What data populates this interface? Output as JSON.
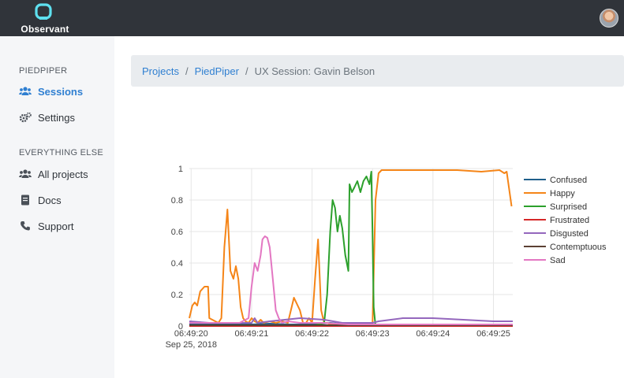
{
  "app": {
    "name": "Observant"
  },
  "sidebar": {
    "section1": "PIEDPIPER",
    "section2": "EVERYTHING ELSE",
    "items": [
      {
        "label": "Sessions",
        "icon": "users-icon",
        "active": true
      },
      {
        "label": "Settings",
        "icon": "gears-icon"
      },
      {
        "label": "All projects",
        "icon": "users-icon"
      },
      {
        "label": "Docs",
        "icon": "document-icon"
      },
      {
        "label": "Support",
        "icon": "phone-icon"
      }
    ]
  },
  "breadcrumb": {
    "projects": "Projects",
    "project": "PiedPiper",
    "current": "UX Session: Gavin Belson"
  },
  "colors": {
    "accent": "#2f7fd1",
    "topbar": "#30343a"
  },
  "chart_data": {
    "type": "line",
    "x_tick_labels": [
      "06:49:20",
      "06:49:21",
      "06:49:22",
      "06:49:23",
      "06:49:24",
      "06:49:25"
    ],
    "x_date_label": "Sep 25, 2018",
    "x_range": [
      19.97,
      25.32
    ],
    "ylim": [
      0,
      1
    ],
    "y_ticks": [
      0,
      0.2,
      0.4,
      0.6,
      0.8,
      1
    ],
    "y_tick_labels": [
      "0",
      "0.2",
      "0.4",
      "0.6",
      "0.8",
      "1"
    ],
    "legend_position": "right",
    "grid": true,
    "series": [
      {
        "name": "Confused",
        "color": "#1f5f8b",
        "x": [
          19.97,
          20.6,
          21.0,
          21.3,
          21.6,
          22.0,
          22.3,
          22.6,
          23.0,
          23.5,
          24.0,
          24.5,
          25.0,
          25.32
        ],
        "y": [
          0.01,
          0.01,
          0.01,
          0.015,
          0.01,
          0.01,
          0.02,
          0.01,
          0.01,
          0.01,
          0.01,
          0.01,
          0.01,
          0.01
        ]
      },
      {
        "name": "Happy",
        "color": "#f58518",
        "x": [
          19.97,
          20.02,
          20.06,
          20.1,
          20.15,
          20.22,
          20.28,
          20.3,
          20.45,
          20.5,
          20.55,
          20.6,
          20.65,
          20.7,
          20.74,
          20.78,
          20.82,
          20.86,
          20.9,
          20.95,
          21.0,
          21.05,
          21.1,
          21.15,
          21.2,
          21.3,
          21.4,
          21.5,
          21.6,
          21.7,
          21.8,
          21.85,
          21.9,
          21.95,
          22.0,
          22.05,
          22.1,
          22.15,
          22.2,
          22.25,
          22.3,
          22.4,
          22.6,
          22.8,
          23.0,
          23.05,
          23.1,
          23.15,
          23.3,
          23.6,
          24.0,
          24.4,
          24.8,
          25.1,
          25.18,
          25.22,
          25.3
        ],
        "y": [
          0.05,
          0.13,
          0.15,
          0.13,
          0.22,
          0.25,
          0.25,
          0.05,
          0.02,
          0.05,
          0.5,
          0.74,
          0.35,
          0.3,
          0.38,
          0.3,
          0.12,
          0.05,
          0.03,
          0.02,
          0.05,
          0.03,
          0.02,
          0.04,
          0.02,
          0.03,
          0.02,
          0.03,
          0.02,
          0.18,
          0.1,
          0.02,
          0.02,
          0.05,
          0.02,
          0.3,
          0.55,
          0.1,
          0.02,
          0.02,
          0.01,
          0.01,
          0.01,
          0.01,
          0.01,
          0.8,
          0.97,
          0.99,
          0.99,
          0.99,
          0.99,
          0.99,
          0.98,
          0.99,
          0.97,
          0.98,
          0.76
        ]
      },
      {
        "name": "Surprised",
        "color": "#2ca02c",
        "x": [
          19.97,
          21.0,
          22.0,
          22.1,
          22.2,
          22.25,
          22.3,
          22.34,
          22.38,
          22.42,
          22.46,
          22.5,
          22.55,
          22.6,
          22.62,
          22.66,
          22.7,
          22.75,
          22.8,
          22.85,
          22.9,
          22.95,
          22.98,
          23.0,
          23.02,
          23.05,
          23.2,
          23.5,
          24.0,
          24.5,
          25.0,
          25.32
        ],
        "y": [
          0.0,
          0.0,
          0.0,
          0.01,
          0.02,
          0.2,
          0.6,
          0.8,
          0.75,
          0.6,
          0.7,
          0.62,
          0.45,
          0.35,
          0.9,
          0.85,
          0.88,
          0.92,
          0.85,
          0.92,
          0.95,
          0.9,
          0.98,
          0.6,
          0.12,
          0.0,
          0.0,
          0.0,
          0.0,
          0.0,
          0.0,
          0.0
        ]
      },
      {
        "name": "Frustrated",
        "color": "#d62728",
        "x": [
          19.97,
          25.32
        ],
        "y": [
          0.0,
          0.0
        ]
      },
      {
        "name": "Disgusted",
        "color": "#9467bd",
        "x": [
          19.97,
          20.3,
          20.6,
          21.0,
          21.05,
          21.1,
          21.3,
          21.8,
          22.2,
          22.5,
          23.0,
          23.1,
          23.5,
          24.0,
          24.5,
          25.0,
          25.32
        ],
        "y": [
          0.03,
          0.02,
          0.02,
          0.02,
          0.05,
          0.02,
          0.03,
          0.05,
          0.04,
          0.02,
          0.02,
          0.03,
          0.05,
          0.05,
          0.04,
          0.03,
          0.03
        ]
      },
      {
        "name": "Contemptuous",
        "color": "#5c4033",
        "x": [
          19.97,
          25.32
        ],
        "y": [
          0.005,
          0.005
        ]
      },
      {
        "name": "Sad",
        "color": "#e377c2",
        "x": [
          19.97,
          20.3,
          20.8,
          20.95,
          21.0,
          21.05,
          21.1,
          21.15,
          21.18,
          21.22,
          21.26,
          21.3,
          21.35,
          21.4,
          21.45,
          21.5,
          21.6,
          21.8,
          22.2,
          22.6,
          23.0,
          23.5,
          24.0,
          24.5,
          25.0,
          25.32
        ],
        "y": [
          0.02,
          0.02,
          0.02,
          0.05,
          0.25,
          0.4,
          0.35,
          0.45,
          0.55,
          0.57,
          0.56,
          0.5,
          0.3,
          0.1,
          0.05,
          0.02,
          0.03,
          0.02,
          0.02,
          0.01,
          0.01,
          0.01,
          0.01,
          0.01,
          0.01,
          0.01
        ]
      }
    ]
  }
}
